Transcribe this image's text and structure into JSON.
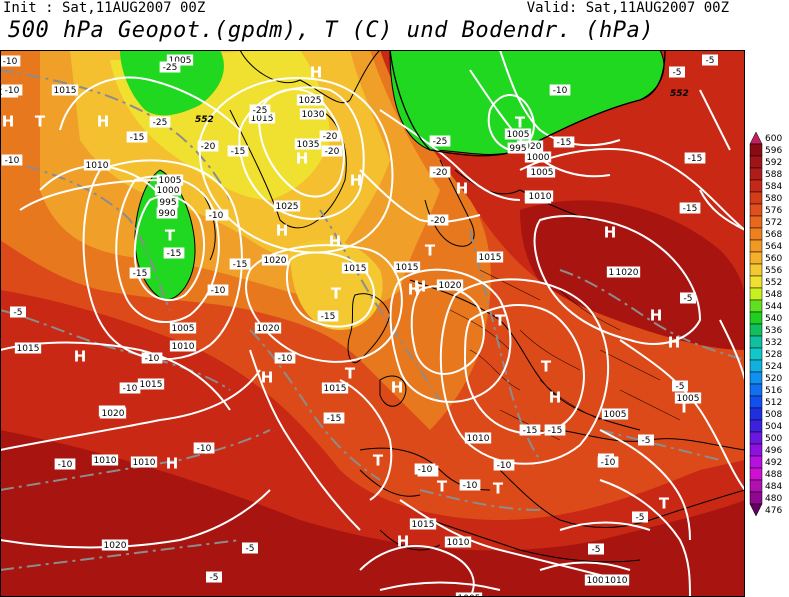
{
  "header": {
    "init": "Init : Sat,11AUG2007 00Z",
    "valid": "Valid: Sat,11AUG2007 00Z",
    "title": "500 hPa Geopot.(gpdm), T (C) und Bodendr. (hPa)"
  },
  "colors": {
    "deep_red": "#a01010",
    "red": "#c82814",
    "orange_red": "#e0501c",
    "orange": "#e8781e",
    "light_orange": "#f0a028",
    "yellow_orange": "#f4c030",
    "yellow": "#f0e030",
    "green": "#20d820",
    "teal": "#10b070",
    "contour": "#ffffff",
    "temp_dash": "#909090",
    "coast": "#000000"
  },
  "legend": {
    "levels": [
      "600",
      "596",
      "592",
      "588",
      "584",
      "580",
      "576",
      "572",
      "568",
      "564",
      "560",
      "556",
      "552",
      "548",
      "544",
      "540",
      "536",
      "532",
      "528",
      "524",
      "520",
      "516",
      "512",
      "508",
      "504",
      "500",
      "496",
      "492",
      "488",
      "484",
      "480",
      "476"
    ],
    "colors": [
      "#c02060",
      "#8c0a14",
      "#a01418",
      "#b01c18",
      "#c42818",
      "#d43c18",
      "#e0501c",
      "#e8681c",
      "#ee8020",
      "#f29824",
      "#f4b02a",
      "#f4c830",
      "#f0e030",
      "#c8f020",
      "#60e020",
      "#20d020",
      "#10c060",
      "#10c0a0",
      "#10c8c8",
      "#10b0e0",
      "#1090f0",
      "#1070f0",
      "#1050f0",
      "#2030e0",
      "#4020e0",
      "#6818e0",
      "#9010e0",
      "#b810e0",
      "#d010d0",
      "#b010b0",
      "#900890",
      "#600060"
    ]
  },
  "labels": {
    "pressure": [
      {
        "t": "1005"
      },
      {
        "t": "1015"
      },
      {
        "t": "1015"
      },
      {
        "t": "1025"
      },
      {
        "t": "1030"
      },
      {
        "t": "1035"
      },
      {
        "t": "1015"
      },
      {
        "t": "1010"
      },
      {
        "t": "1005"
      },
      {
        "t": "1000"
      },
      {
        "t": "995"
      },
      {
        "t": "990"
      },
      {
        "t": "1025"
      },
      {
        "t": "1020"
      },
      {
        "t": "1015"
      },
      {
        "t": "1020"
      },
      {
        "t": "1010"
      },
      {
        "t": "1005"
      },
      {
        "t": "1020"
      },
      {
        "t": "1015"
      },
      {
        "t": "1015"
      },
      {
        "t": "1020"
      },
      {
        "t": "1010"
      },
      {
        "t": "1015"
      },
      {
        "t": "1020"
      },
      {
        "t": "1015"
      },
      {
        "t": "1015"
      },
      {
        "t": "1010"
      },
      {
        "t": "1005"
      },
      {
        "t": "1005"
      },
      {
        "t": "1020"
      },
      {
        "t": "1015"
      },
      {
        "t": "1010"
      },
      {
        "t": "1010"
      },
      {
        "t": "1010"
      },
      {
        "t": "1005"
      },
      {
        "t": "995"
      },
      {
        "t": "1000"
      },
      {
        "t": "1005"
      },
      {
        "t": "1010"
      },
      {
        "t": "1015"
      },
      {
        "t": "1020"
      },
      {
        "t": "1020"
      },
      {
        "t": "1005"
      },
      {
        "t": "1005"
      },
      {
        "t": "1010"
      },
      {
        "t": "1015"
      },
      {
        "t": "1020"
      }
    ],
    "temps": [
      {
        "t": "-10"
      },
      {
        "t": "-10"
      },
      {
        "t": "-25"
      },
      {
        "t": "-25"
      },
      {
        "t": "-20"
      },
      {
        "t": "-15"
      },
      {
        "t": "-20"
      },
      {
        "t": "-15"
      },
      {
        "t": "-25"
      },
      {
        "t": "-10"
      },
      {
        "t": "-15"
      },
      {
        "t": "-15"
      },
      {
        "t": "-15"
      },
      {
        "t": "-20"
      },
      {
        "t": "-20"
      },
      {
        "t": "-10"
      },
      {
        "t": "-10"
      },
      {
        "t": "-15"
      },
      {
        "t": "-10"
      },
      {
        "t": "-5"
      },
      {
        "t": "-10"
      },
      {
        "t": "-10"
      },
      {
        "t": "-10"
      },
      {
        "t": "-5"
      },
      {
        "t": "-5"
      },
      {
        "t": "-10"
      },
      {
        "t": "-15"
      },
      {
        "t": "-10"
      },
      {
        "t": "-10"
      },
      {
        "t": "-15"
      },
      {
        "t": "-15"
      },
      {
        "t": "-10"
      },
      {
        "t": "-25"
      },
      {
        "t": "-20"
      },
      {
        "t": "-15"
      },
      {
        "t": "-10"
      },
      {
        "t": "-5"
      },
      {
        "t": "-5"
      },
      {
        "t": "-5"
      },
      {
        "t": "-5"
      },
      {
        "t": "-5"
      },
      {
        "t": "-10"
      },
      {
        "t": "-10"
      },
      {
        "t": "-15"
      },
      {
        "t": "-15"
      },
      {
        "t": "-10"
      },
      {
        "t": "-5"
      },
      {
        "t": "-5"
      },
      {
        "t": "-5"
      }
    ],
    "highs": [
      "H",
      "H",
      "H",
      "H",
      "H",
      "H",
      "H",
      "H",
      "H",
      "H",
      "H",
      "H",
      "H",
      "H",
      "H",
      "H",
      "H",
      "H",
      "H"
    ],
    "lows": [
      "T",
      "T",
      "T",
      "T",
      "T",
      "T",
      "T",
      "T",
      "T",
      "T",
      "T",
      "T",
      "T"
    ],
    "contour_val": "552"
  }
}
